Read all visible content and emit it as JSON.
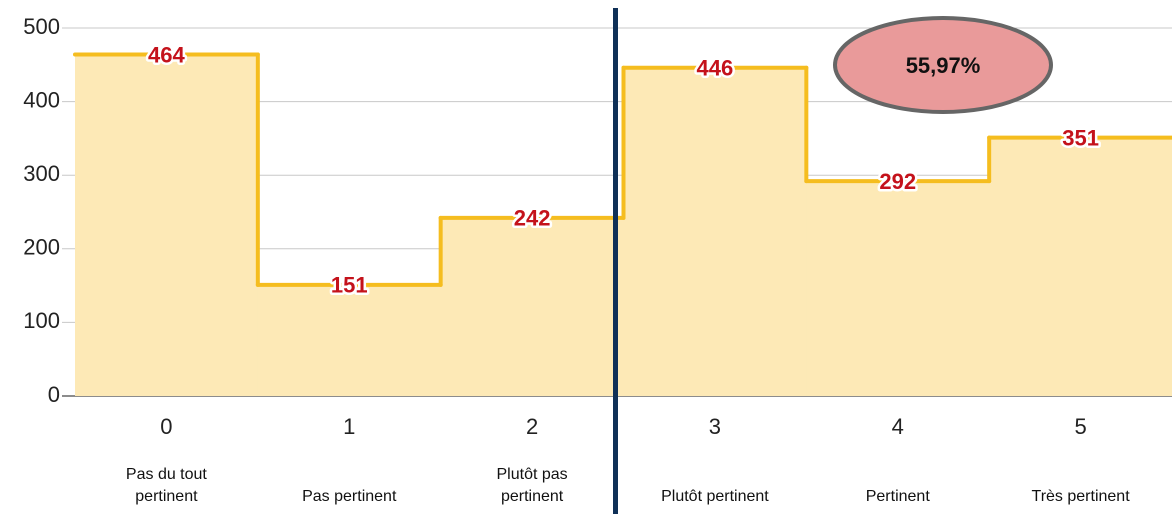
{
  "chart_data": {
    "type": "step-area",
    "categories": [
      "0",
      "1",
      "2",
      "3",
      "4",
      "5"
    ],
    "category_descriptions": [
      "Pas du tout pertinent",
      "Pas pertinent",
      "Plutôt pas pertinent",
      "Plutôt pertinent",
      "Pertinent",
      "Très pertinent"
    ],
    "values": [
      464,
      151,
      242,
      446,
      292,
      351
    ],
    "color": "#f5bd1f",
    "fill_color": "#fde9b6",
    "ylim": [
      0,
      500
    ],
    "yticks": [
      0,
      100,
      200,
      300,
      400,
      500
    ],
    "grid": true,
    "annotation": "55,97%"
  }
}
